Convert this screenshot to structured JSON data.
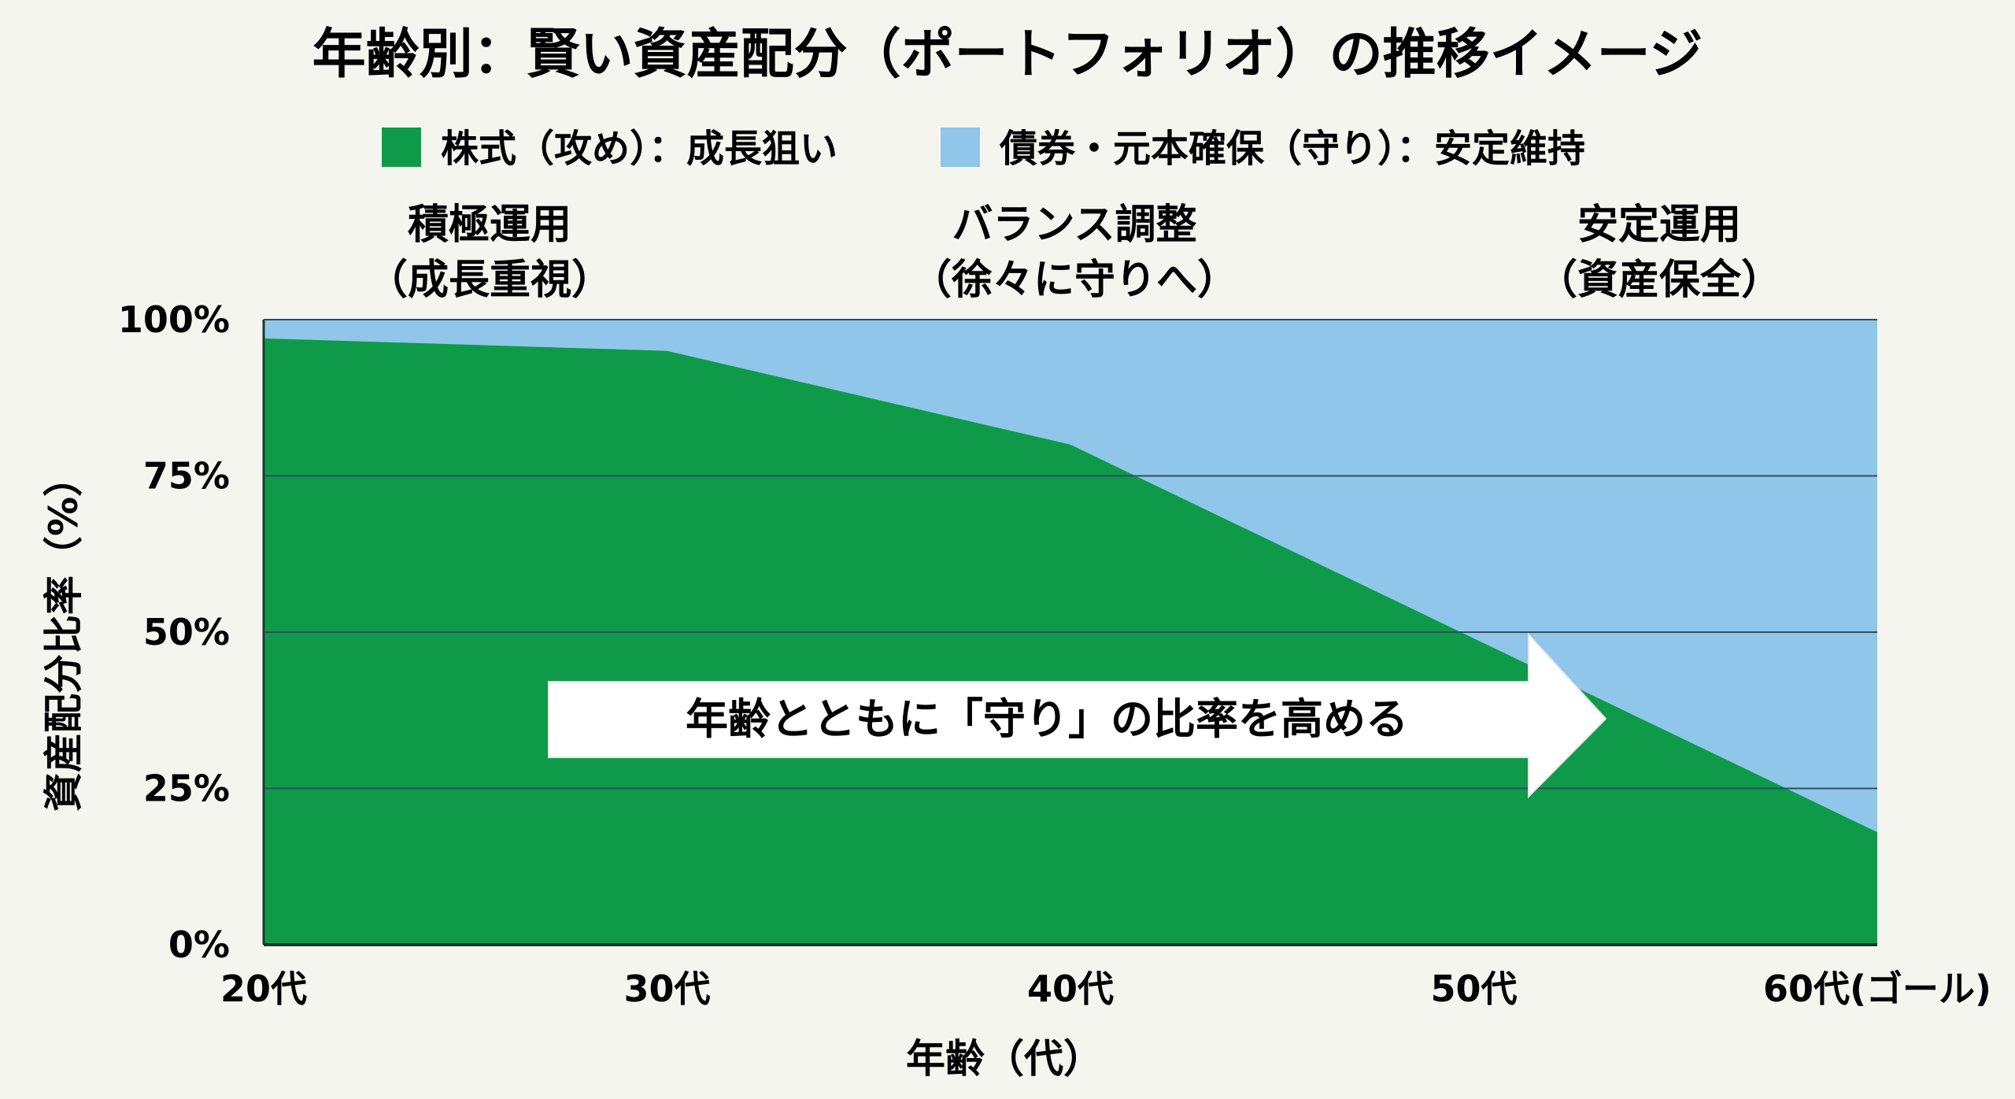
{
  "chart_data": {
    "type": "area",
    "title": "年齢別：賢い資産配分（ポートフォリオ）の推移イメージ",
    "xlabel": "年齢（代）",
    "ylabel": "資産配分比率（%）",
    "categories": [
      "20代",
      "30代",
      "40代",
      "50代",
      "60代(ゴール)"
    ],
    "ylim": [
      0,
      100
    ],
    "y_ticks": [
      "0%",
      "25%",
      "50%",
      "75%",
      "100%"
    ],
    "grid": true,
    "stacked": true,
    "series": [
      {
        "name": "株式（攻め）：成長狙い",
        "color": "#0f9a4a",
        "points": [
          {
            "x": 20,
            "y": 97
          },
          {
            "x": 30,
            "y": 95
          },
          {
            "x": 40,
            "y": 80
          },
          {
            "x": 50,
            "y": 49
          },
          {
            "x": 60,
            "y": 18
          }
        ]
      },
      {
        "name": "債券・元本確保（守り）：安定維持",
        "color": "#8fc6ea",
        "points": [
          {
            "x": 20,
            "y": 3
          },
          {
            "x": 30,
            "y": 5
          },
          {
            "x": 40,
            "y": 20
          },
          {
            "x": 50,
            "y": 51
          },
          {
            "x": 60,
            "y": 82
          }
        ]
      }
    ],
    "phases": [
      {
        "line1": "積極運用",
        "line2": "（成長重視）",
        "x": 25
      },
      {
        "line1": "バランス調整",
        "line2": "（徐々に守りへ）",
        "x": 40
      },
      {
        "line1": "安定運用",
        "line2": "（資産保全）",
        "x": 60
      }
    ],
    "annotation": "年齢とともに「守り」の比率を高める"
  }
}
